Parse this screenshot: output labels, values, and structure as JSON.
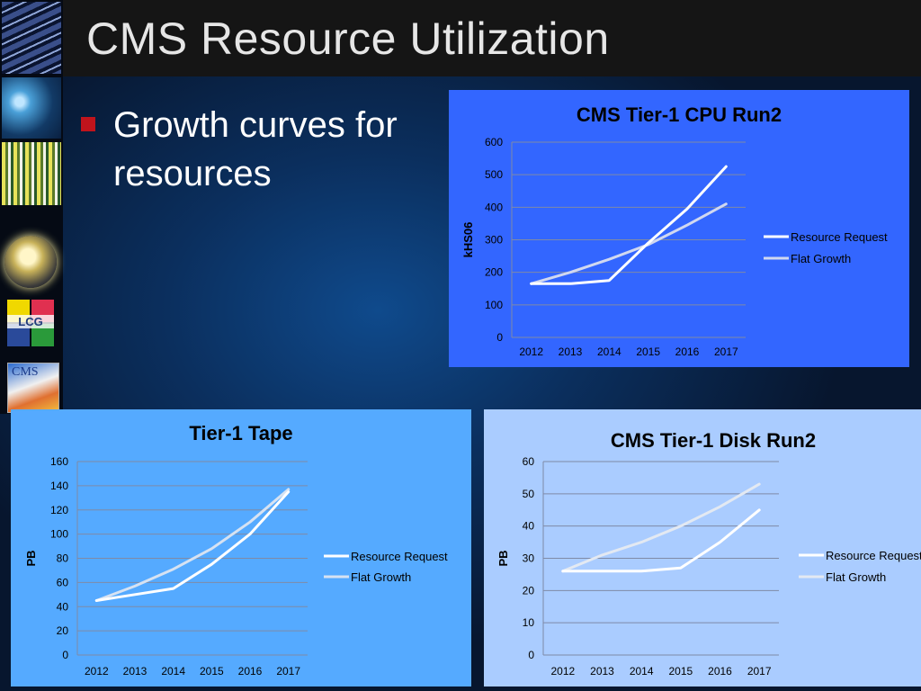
{
  "slide": {
    "title": "CMS Resource Utilization",
    "bullet": "Growth curves for resources",
    "logos": {
      "lcg": "LCG",
      "cms": "CMS"
    }
  },
  "chart_data": [
    {
      "id": "cpu",
      "type": "line",
      "title": "CMS Tier-1 CPU Run2",
      "ylabel": "kHS06",
      "xlabel": "",
      "categories": [
        "2012",
        "2013",
        "2014",
        "2015",
        "2016",
        "2017"
      ],
      "ylim": [
        0,
        600
      ],
      "yticks": [
        0,
        100,
        200,
        300,
        400,
        500,
        600
      ],
      "grid": true,
      "legend": "right",
      "background": "#3366ff",
      "series": [
        {
          "name": "Resource Request",
          "values": [
            165,
            165,
            175,
            290,
            395,
            525
          ],
          "color": "#ffffff"
        },
        {
          "name": "Flat Growth",
          "values": [
            165,
            200,
            240,
            285,
            345,
            410
          ],
          "color": "#d0d8f0"
        }
      ]
    },
    {
      "id": "tape",
      "type": "line",
      "title": "Tier-1 Tape",
      "ylabel": "PB",
      "xlabel": "",
      "categories": [
        "2012",
        "2013",
        "2014",
        "2015",
        "2016",
        "2017"
      ],
      "ylim": [
        0,
        160
      ],
      "yticks": [
        0,
        20,
        40,
        60,
        80,
        100,
        120,
        140,
        160
      ],
      "grid": true,
      "legend": "right",
      "background": "#55aaff",
      "series": [
        {
          "name": "Resource Request",
          "values": [
            45,
            50,
            55,
            75,
            100,
            135
          ],
          "color": "#ffffff"
        },
        {
          "name": "Flat Growth",
          "values": [
            45,
            57,
            71,
            88,
            110,
            137
          ],
          "color": "#d6e2f2"
        }
      ]
    },
    {
      "id": "disk",
      "type": "line",
      "title": "CMS Tier-1 Disk Run2",
      "ylabel": "PB",
      "xlabel": "",
      "categories": [
        "2012",
        "2013",
        "2014",
        "2015",
        "2016",
        "2017"
      ],
      "ylim": [
        0,
        60
      ],
      "yticks": [
        0,
        10,
        20,
        30,
        40,
        50,
        60
      ],
      "grid": true,
      "legend": "right",
      "background": "#aaccff",
      "series": [
        {
          "name": "Resource Request",
          "values": [
            26,
            26,
            26,
            27,
            35,
            45
          ],
          "color": "#ffffff"
        },
        {
          "name": "Flat Growth",
          "values": [
            26,
            31,
            35,
            40,
            46,
            53
          ],
          "color": "#e3e9f2"
        }
      ]
    }
  ]
}
